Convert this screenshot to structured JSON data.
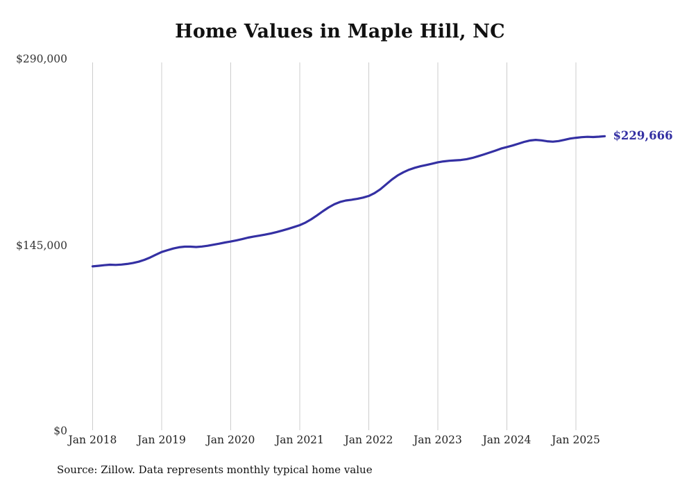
{
  "title": "Home Values in Maple Hill, NC",
  "source_note": "Source: Zillow. Data represents monthly typical home value",
  "end_label": "$229,666",
  "colors": {
    "line": "#3430a3",
    "grid": "#cccccc",
    "end_label": "#3430a3",
    "axis_text": "#333333",
    "title_text": "#111111"
  },
  "y_axis": {
    "tick_labels": [
      "$0",
      "$145,000",
      "$290,000"
    ]
  },
  "chart_data": {
    "type": "line",
    "title": "Home Values in Maple Hill, NC",
    "xlabel": "",
    "ylabel": "",
    "ylim": [
      0,
      290000
    ],
    "y_tick_labels": [
      "$0",
      "$145,000",
      "$290,000"
    ],
    "x_tick_labels": [
      "Jan 2018",
      "Jan 2019",
      "Jan 2020",
      "Jan 2021",
      "Jan 2022",
      "Jan 2023",
      "Jan 2024",
      "Jan 2025"
    ],
    "x_start": "2018-01",
    "x_end": "2025-06",
    "grid": "vertical-only",
    "legend": "none",
    "annotation": {
      "text": "$229,666",
      "position": "end-of-line"
    },
    "series": [
      {
        "name": "Monthly typical home value",
        "values": [
          128000,
          128400,
          128900,
          129300,
          129100,
          129400,
          129900,
          130600,
          131600,
          133100,
          134900,
          137100,
          139200,
          140600,
          141900,
          142900,
          143400,
          143400,
          143100,
          143500,
          144100,
          144900,
          145700,
          146600,
          147400,
          148300,
          149300,
          150400,
          151300,
          152000,
          152800,
          153700,
          154800,
          156000,
          157300,
          158700,
          160200,
          162200,
          164800,
          167800,
          171000,
          174000,
          176500,
          178300,
          179400,
          180000,
          180700,
          181700,
          183000,
          185200,
          188200,
          192000,
          195800,
          199000,
          201500,
          203500,
          205000,
          206200,
          207200,
          208200,
          209300,
          210000,
          210500,
          210800,
          211100,
          211700,
          212700,
          214000,
          215400,
          216900,
          218400,
          220000,
          221200,
          222400,
          223800,
          225200,
          226300,
          226800,
          226400,
          225700,
          225400,
          225900,
          226800,
          227800,
          228400,
          228900,
          229200,
          229000,
          229300,
          229666
        ]
      }
    ]
  }
}
